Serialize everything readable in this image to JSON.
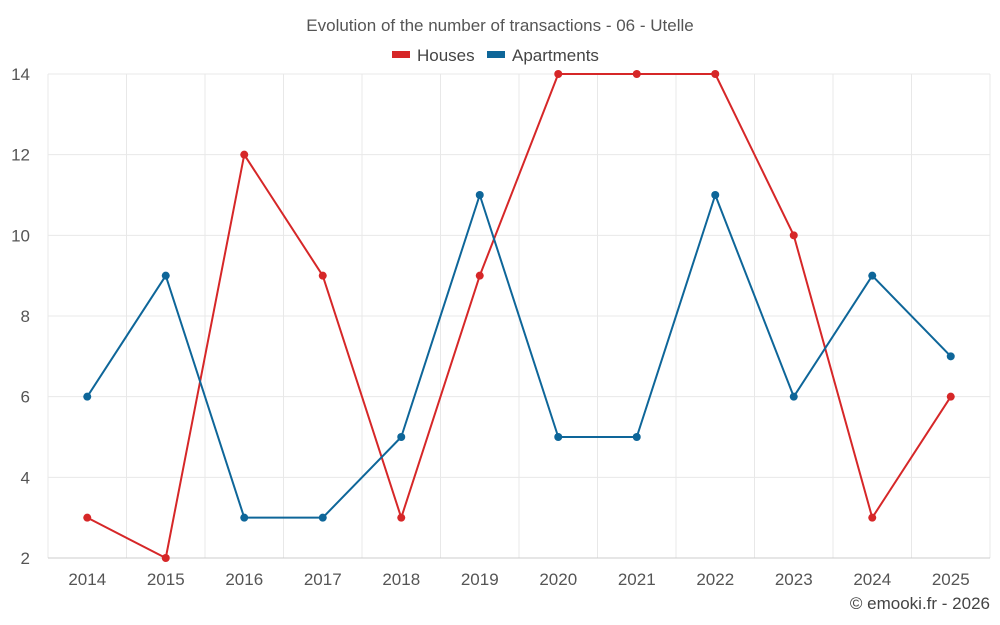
{
  "chart_data": {
    "type": "line",
    "title": "Evolution of the number of transactions - 06 - Utelle",
    "categories": [
      "2014",
      "2015",
      "2016",
      "2017",
      "2018",
      "2019",
      "2020",
      "2021",
      "2022",
      "2023",
      "2024",
      "2025"
    ],
    "series": [
      {
        "name": "Houses",
        "color": "#d62728",
        "values": [
          3,
          2,
          12,
          9,
          3,
          9,
          14,
          14,
          14,
          10,
          3,
          6
        ]
      },
      {
        "name": "Apartments",
        "color": "#0e6699",
        "values": [
          6,
          9,
          3,
          3,
          5,
          11,
          5,
          5,
          11,
          6,
          9,
          7
        ]
      }
    ],
    "yticks": [
      2,
      4,
      6,
      8,
      10,
      12,
      14
    ],
    "ylim": [
      2,
      14
    ],
    "xlabel": "",
    "ylabel": "",
    "grid": true,
    "legend": "top-center"
  },
  "credit": "© emooki.fr - 2026"
}
